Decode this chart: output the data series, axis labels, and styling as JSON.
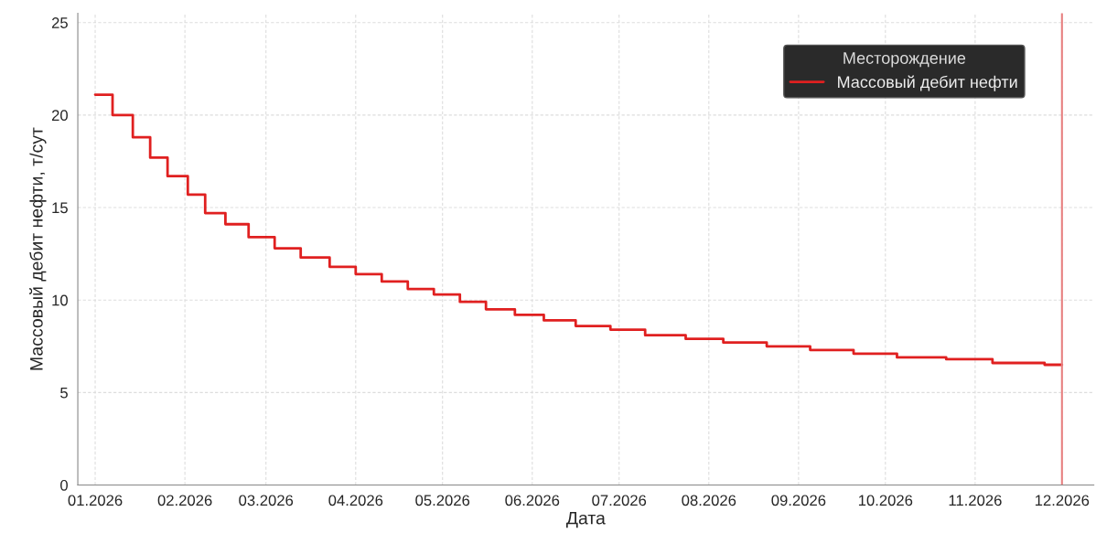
{
  "chart_data": {
    "type": "step",
    "xlabel": "Дата",
    "ylabel": "Массовый дебит нефти, т/сут",
    "legend_title": "Месторождение",
    "x": [
      "2026-01-01",
      "2026-01-07",
      "2026-01-14",
      "2026-01-20",
      "2026-01-26",
      "2026-02-02",
      "2026-02-08",
      "2026-02-15",
      "2026-02-23",
      "2026-03-04",
      "2026-03-13",
      "2026-03-23",
      "2026-04-01",
      "2026-04-10",
      "2026-04-19",
      "2026-04-28",
      "2026-05-07",
      "2026-05-16",
      "2026-05-26",
      "2026-06-05",
      "2026-06-16",
      "2026-06-28",
      "2026-07-10",
      "2026-07-24",
      "2026-08-06",
      "2026-08-21",
      "2026-09-05",
      "2026-09-20",
      "2026-10-05",
      "2026-10-22",
      "2026-11-07",
      "2026-11-25",
      "2026-12-01"
    ],
    "series": [
      {
        "name": "Массовый дебит нефти",
        "color": "#e02020",
        "values": [
          21.1,
          20.0,
          18.8,
          17.7,
          16.7,
          15.7,
          14.7,
          14.1,
          13.4,
          12.8,
          12.3,
          11.8,
          11.4,
          11.0,
          10.6,
          10.3,
          9.9,
          9.5,
          9.2,
          8.9,
          8.6,
          8.4,
          8.1,
          7.9,
          7.7,
          7.5,
          7.3,
          7.1,
          6.9,
          6.8,
          6.6,
          6.5,
          6.5
        ]
      }
    ],
    "xlim": [
      "2025-12-26",
      "2026-12-12"
    ],
    "xticks": [
      {
        "value": "2026-01-01",
        "label": "01.2026"
      },
      {
        "value": "2026-02-01",
        "label": "02.2026"
      },
      {
        "value": "2026-03-01",
        "label": "03.2026"
      },
      {
        "value": "2026-04-01",
        "label": "04.2026"
      },
      {
        "value": "2026-05-01",
        "label": "05.2026"
      },
      {
        "value": "2026-06-01",
        "label": "06.2026"
      },
      {
        "value": "2026-07-01",
        "label": "07.2026"
      },
      {
        "value": "2026-08-01",
        "label": "08.2026"
      },
      {
        "value": "2026-09-01",
        "label": "09.2026"
      },
      {
        "value": "2026-10-01",
        "label": "10.2026"
      },
      {
        "value": "2026-11-01",
        "label": "11.2026"
      },
      {
        "value": "2026-12-01",
        "label": "12.2026"
      }
    ],
    "ylim": [
      0,
      25.5
    ],
    "yticks": [
      0,
      5,
      10,
      15,
      20,
      25
    ],
    "ref_lines": [
      {
        "axis": "x",
        "value": "2026-12-01",
        "color": "#e88080"
      }
    ],
    "grid": true,
    "legend": "top right",
    "line_style": "solid",
    "marker": "none"
  }
}
